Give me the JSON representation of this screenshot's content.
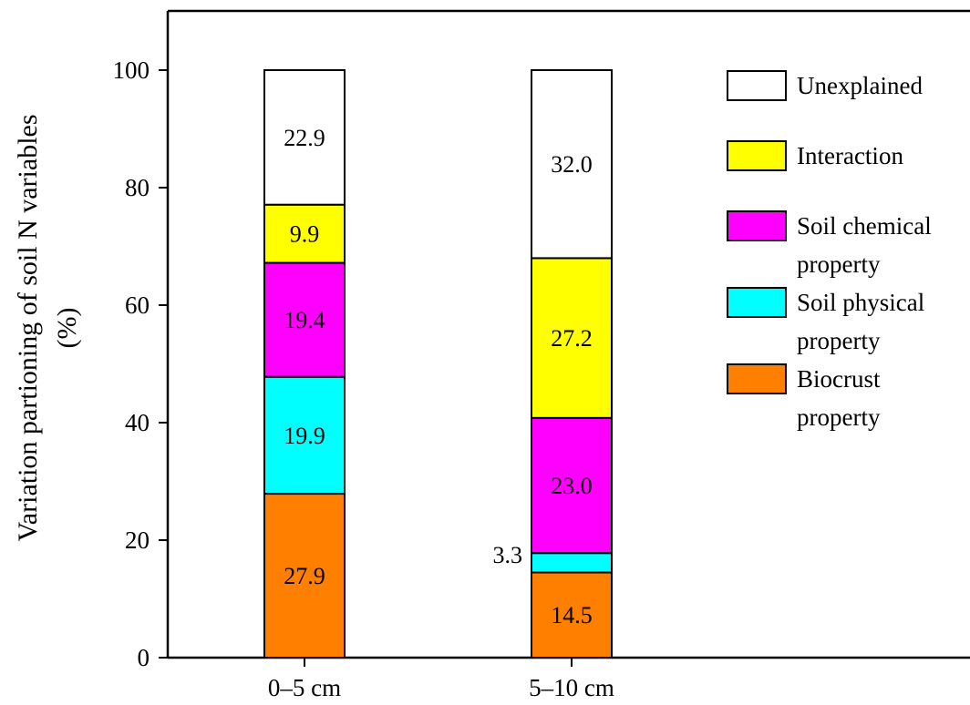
{
  "chart_data": {
    "type": "bar",
    "stacked": true,
    "categories": [
      "0–5 cm",
      "5–10 cm"
    ],
    "series": [
      {
        "name": "Biocrust property",
        "color": "#ff8000",
        "values": [
          27.9,
          14.5
        ],
        "labels": [
          "27.9",
          "14.5"
        ]
      },
      {
        "name": "Soil physical property",
        "color": "#00ffff",
        "values": [
          19.9,
          3.3
        ],
        "labels": [
          "19.9",
          "3.3"
        ]
      },
      {
        "name": "Soil chemical property",
        "color": "#ff00ff",
        "values": [
          19.4,
          23.0
        ],
        "labels": [
          "19.4",
          "23.0"
        ]
      },
      {
        "name": "Interaction",
        "color": "#ffff00",
        "values": [
          9.9,
          27.2
        ],
        "labels": [
          "9.9",
          "27.2"
        ]
      },
      {
        "name": "Unexplained",
        "color": "#ffffff",
        "values": [
          22.9,
          32.0
        ],
        "labels": [
          "22.9",
          "32.0"
        ]
      }
    ],
    "ylabel": [
      "Variation partioning of soil N variables",
      "(%)"
    ],
    "xlabel": "",
    "ylim": [
      0,
      100
    ],
    "yticks": [
      0,
      20,
      40,
      60,
      80,
      100
    ],
    "legend": {
      "placement": "top-right",
      "entries": [
        {
          "lines": [
            "Unexplained"
          ],
          "color": "#ffffff"
        },
        {
          "lines": [
            "Interaction"
          ],
          "color": "#ffff00"
        },
        {
          "lines": [
            "Soil chemical",
            "property"
          ],
          "color": "#ff00ff"
        },
        {
          "lines": [
            "Soil physical",
            "property"
          ],
          "color": "#00ffff"
        },
        {
          "lines": [
            "Biocrust",
            "property"
          ],
          "color": "#ff8000"
        }
      ]
    },
    "grid": false
  }
}
